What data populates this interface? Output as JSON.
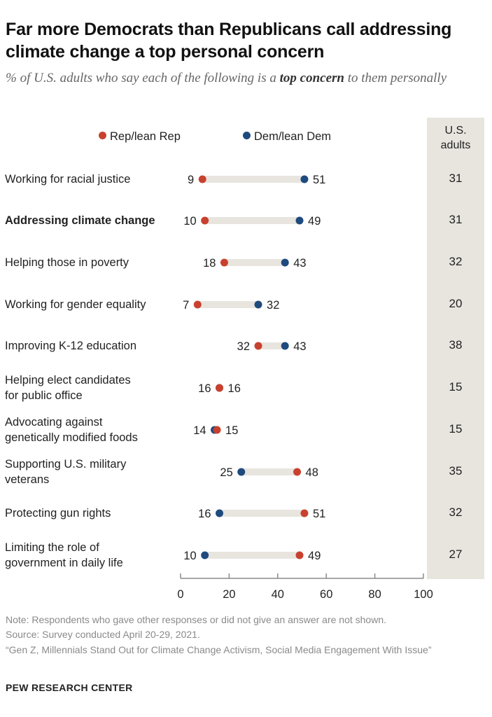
{
  "title": "Far more Democrats than Republicans call addressing climate change a top personal concern",
  "subtitle_pre": "% of U.S. adults who say each of the following is a ",
  "subtitle_bold": "top concern",
  "subtitle_post": " to them personally",
  "legend": {
    "rep": "Rep/lean Rep",
    "dem": "Dem/lean Dem"
  },
  "column_header": "U.S. adults",
  "colors": {
    "rep": "#c8412f",
    "dem": "#1f4a7e",
    "connector": "#e8e5df",
    "band": "#e8e5df",
    "axis": "#8a8a8a"
  },
  "chart_data": {
    "type": "dot",
    "xlim": [
      0,
      100
    ],
    "ticks": [
      "0",
      "20",
      "40",
      "60",
      "80",
      "100"
    ],
    "tick_values": [
      0,
      20,
      40,
      60,
      80,
      100
    ],
    "series": [
      {
        "name": "Rep/lean Rep",
        "key": "rep"
      },
      {
        "name": "Dem/lean Dem",
        "key": "dem"
      }
    ],
    "rows": [
      {
        "label": "Working for racial justice",
        "bold": false,
        "rep": 9,
        "dem": 51,
        "us": 31
      },
      {
        "label": "Addressing climate change",
        "bold": true,
        "rep": 10,
        "dem": 49,
        "us": 31
      },
      {
        "label": "Helping those in poverty",
        "bold": false,
        "rep": 18,
        "dem": 43,
        "us": 32
      },
      {
        "label": "Working for gender equality",
        "bold": false,
        "rep": 7,
        "dem": 32,
        "us": 20
      },
      {
        "label": "Improving K-12 education",
        "bold": false,
        "rep": 32,
        "dem": 43,
        "us": 38
      },
      {
        "label": "Helping elect candidates for public office",
        "bold": false,
        "rep": 16,
        "dem": 16,
        "us": 15
      },
      {
        "label": "Advocating against genetically modified foods",
        "bold": false,
        "rep": 15,
        "dem": 14,
        "us": 15
      },
      {
        "label": "Supporting U.S. military veterans",
        "bold": false,
        "rep": 48,
        "dem": 25,
        "us": 35
      },
      {
        "label": "Protecting gun rights",
        "bold": false,
        "rep": 51,
        "dem": 16,
        "us": 32
      },
      {
        "label": "Limiting the role of government in daily life",
        "bold": false,
        "rep": 49,
        "dem": 10,
        "us": 27
      }
    ]
  },
  "notes": {
    "note": "Note: Respondents who gave other responses or did not give an answer are not shown.",
    "source": "Source: Survey conducted April 20-29, 2021.",
    "report": "“Gen Z, Millennials Stand Out for Climate Change Activism, Social Media Engagement With Issue”"
  },
  "footer": "PEW RESEARCH CENTER"
}
